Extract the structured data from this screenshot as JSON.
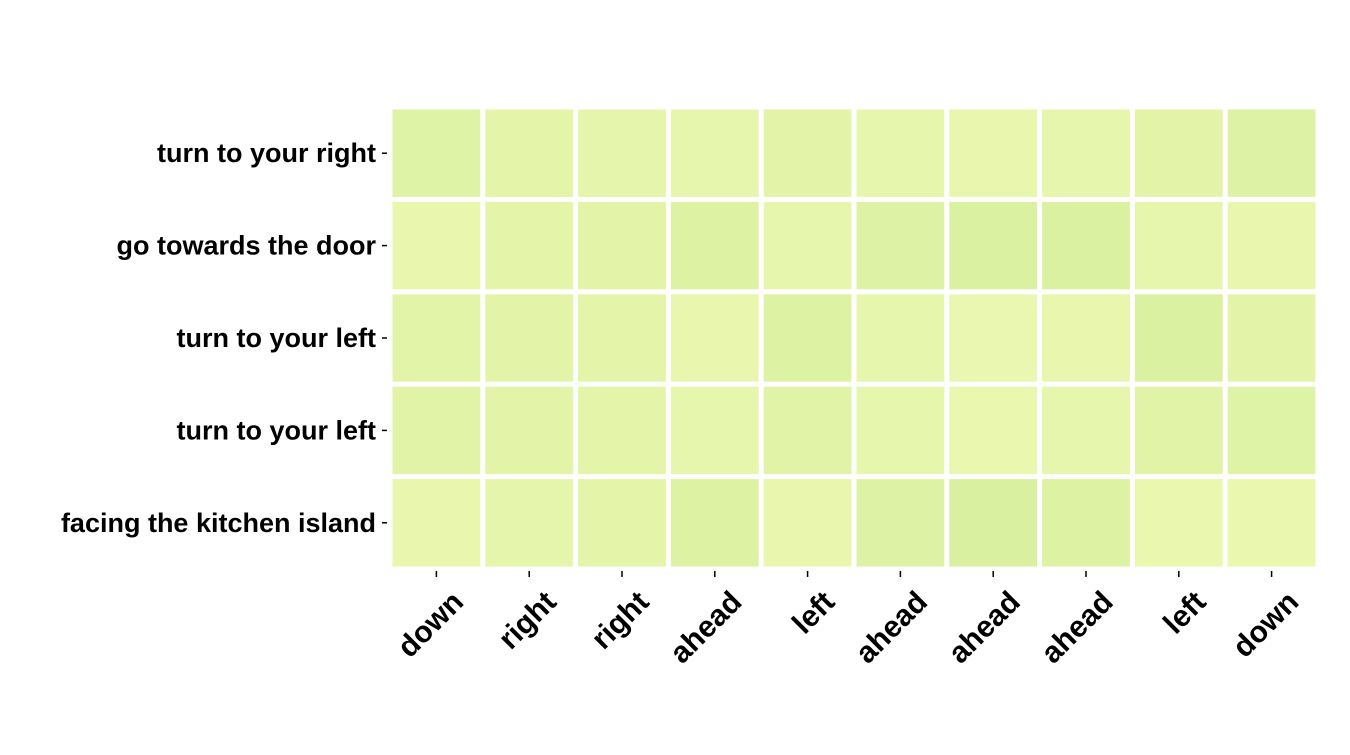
{
  "chart_data": {
    "type": "heatmap",
    "title": "",
    "xlabel": "",
    "ylabel": "",
    "x_categories": [
      "down",
      "right",
      "right",
      "ahead",
      "left",
      "ahead",
      "ahead",
      "ahead",
      "left",
      "down"
    ],
    "y_categories": [
      "turn to your right",
      "go towards the door",
      "turn to your left",
      "turn to your left",
      "facing the kitchen island"
    ],
    "values": [
      [
        0.22,
        0.14,
        0.12,
        0.1,
        0.16,
        0.1,
        0.08,
        0.1,
        0.16,
        0.24
      ],
      [
        0.08,
        0.14,
        0.16,
        0.26,
        0.1,
        0.24,
        0.3,
        0.28,
        0.1,
        0.08
      ],
      [
        0.18,
        0.16,
        0.14,
        0.08,
        0.26,
        0.1,
        0.04,
        0.08,
        0.28,
        0.16
      ],
      [
        0.2,
        0.16,
        0.14,
        0.1,
        0.2,
        0.1,
        0.06,
        0.1,
        0.2,
        0.22
      ],
      [
        0.08,
        0.12,
        0.14,
        0.26,
        0.08,
        0.24,
        0.32,
        0.26,
        0.06,
        0.06
      ]
    ],
    "colormap": {
      "low": "#eaf7b0",
      "high": "#d9f0a0"
    },
    "colorbar": false,
    "cell_border_color": "#ffffff"
  }
}
